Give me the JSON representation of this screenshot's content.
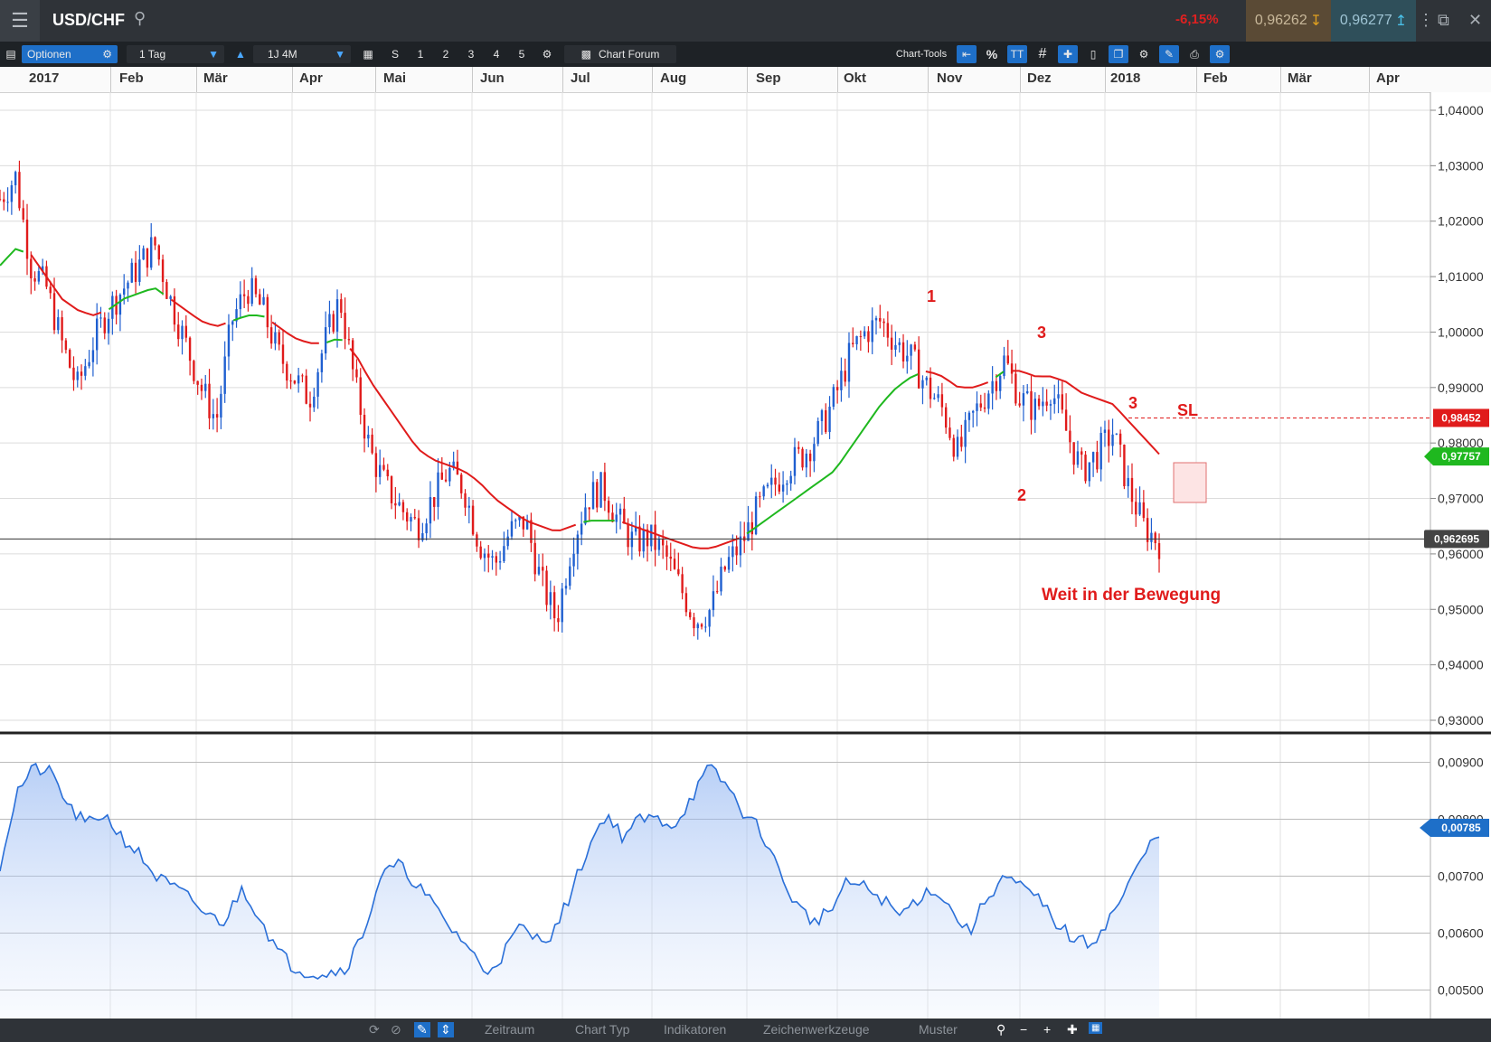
{
  "titlebar": {
    "symbol": "USD/CHF",
    "change": "-6,15%",
    "bid": "0,96262",
    "ask": "0,96277",
    "icons": [
      "menu-icon",
      "search-icon",
      "arrow-down-icon",
      "arrow-up-icon",
      "minimize-icon",
      "restore-icon",
      "close-icon"
    ]
  },
  "toolbar": {
    "options_label": "Optionen",
    "period_label": "1 Tag",
    "range_label": "1J 4M",
    "quick_periods": [
      "S",
      "1",
      "2",
      "3",
      "4",
      "5"
    ],
    "forum_label": "Chart Forum",
    "chart_tools_label": "Chart-Tools",
    "percent_label": "%",
    "text_label": "TT"
  },
  "time_axis": {
    "months": [
      "2017",
      "Feb",
      "Mär",
      "Apr",
      "Mai",
      "Jun",
      "Jul",
      "Aug",
      "Sep",
      "Okt",
      "Nov",
      "Dez",
      "2018",
      "Feb",
      "Mär",
      "Apr"
    ]
  },
  "price_axis": {
    "ticks": [
      "1,04000",
      "1,03000",
      "1,02000",
      "1,01000",
      "1,00000",
      "0,99000",
      "0,98000",
      "0,97000",
      "0,96000",
      "0,95000",
      "0,94000",
      "0,93000"
    ],
    "labels": {
      "sl": "0,98452",
      "ma": "0,97757",
      "current": "0,962695"
    }
  },
  "indicator_axis": {
    "ticks": [
      "0,00900",
      "0,00800",
      "0,00700",
      "0,00600",
      "0,00500"
    ],
    "current": "0,00785"
  },
  "annotations": {
    "wave_1": "1",
    "wave_2": "2",
    "wave_3a": "3",
    "wave_3b": "3",
    "sl": "SL",
    "note": "Weit in der Bewegung"
  },
  "bottombar": {
    "items": [
      "Zeitraum",
      "Chart Typ",
      "Indikatoren",
      "Zeichenwerkzeuge",
      "Muster"
    ]
  },
  "colors": {
    "up": "#1f5fd0",
    "down": "#e01b1b",
    "ma_red": "#e01b1b",
    "ma_green": "#1fb81f",
    "indicator": "#2a6fd8"
  },
  "chart_data": {
    "type": "candlestick",
    "price_range": [
      0.93,
      1.04
    ],
    "indicator_range": [
      0.005,
      0.009
    ],
    "current_price": 0.962695,
    "stop_loss": 0.98452,
    "ma_value": 0.97757,
    "wave_points": [
      {
        "label": "1",
        "date": "Nov 2017",
        "price": 1.003
      },
      {
        "label": "2",
        "date": "Dez 2017",
        "price": 0.976
      },
      {
        "label": "3",
        "date": "Dez 2017",
        "price": 0.996
      },
      {
        "label": "3",
        "date": "Jan 2018",
        "price": 0.985
      }
    ],
    "price_path": [
      1.024,
      1.028,
      1.012,
      1.008,
      0.998,
      0.99,
      0.998,
      1.004,
      1.008,
      1.012,
      1.016,
      1.006,
      0.998,
      0.99,
      0.984,
      1.002,
      1.008,
      1.004,
      0.996,
      0.992,
      0.988,
      0.998,
      1.006,
      0.99,
      0.978,
      0.972,
      0.968,
      0.965,
      0.97,
      0.975,
      0.972,
      0.962,
      0.958,
      0.964,
      0.966,
      0.955,
      0.948,
      0.962,
      0.97,
      0.972,
      0.966,
      0.962,
      0.963,
      0.96,
      0.954,
      0.948,
      0.95,
      0.958,
      0.962,
      0.968,
      0.972,
      0.976,
      0.978,
      0.982,
      0.988,
      0.996,
      1.0,
      1.002,
      0.998,
      0.995,
      0.99,
      0.986,
      0.978,
      0.985,
      0.99,
      0.995,
      0.988,
      0.986,
      0.99,
      0.982,
      0.975,
      0.978,
      0.982,
      0.972,
      0.965,
      0.962
    ],
    "ma_path": [
      1.012,
      1.015,
      1.014,
      1.01,
      1.006,
      1.004,
      1.003,
      1.004,
      1.006,
      1.007,
      1.008,
      1.006,
      1.004,
      1.002,
      1.001,
      1.002,
      1.003,
      1.003,
      1.001,
      0.999,
      0.998,
      0.998,
      0.999,
      0.996,
      0.991,
      0.987,
      0.983,
      0.979,
      0.977,
      0.976,
      0.975,
      0.973,
      0.97,
      0.968,
      0.966,
      0.965,
      0.964,
      0.965,
      0.966,
      0.966,
      0.966,
      0.965,
      0.964,
      0.963,
      0.962,
      0.961,
      0.961,
      0.962,
      0.963,
      0.965,
      0.967,
      0.969,
      0.971,
      0.973,
      0.975,
      0.979,
      0.983,
      0.987,
      0.99,
      0.992,
      0.993,
      0.992,
      0.99,
      0.99,
      0.991,
      0.993,
      0.993,
      0.992,
      0.992,
      0.991,
      0.989,
      0.988,
      0.987,
      0.984,
      0.981,
      0.978
    ],
    "indicator_path": [
      0.0072,
      0.0085,
      0.0089,
      0.0088,
      0.0082,
      0.0079,
      0.0081,
      0.0077,
      0.0074,
      0.007,
      0.0068,
      0.0066,
      0.0063,
      0.0062,
      0.0068,
      0.0063,
      0.0057,
      0.0054,
      0.0053,
      0.0053,
      0.0054,
      0.006,
      0.007,
      0.0072,
      0.0069,
      0.0065,
      0.0061,
      0.0058,
      0.0053,
      0.0056,
      0.0061,
      0.0059,
      0.006,
      0.0067,
      0.0075,
      0.0081,
      0.0077,
      0.008,
      0.008,
      0.0079,
      0.0084,
      0.0089,
      0.0086,
      0.0081,
      0.0078,
      0.0071,
      0.0065,
      0.0062,
      0.0064,
      0.0069,
      0.0068,
      0.0066,
      0.0063,
      0.0066,
      0.0068,
      0.0064,
      0.006,
      0.0066,
      0.007,
      0.0068,
      0.0066,
      0.0062,
      0.0059,
      0.0058,
      0.0062,
      0.0067,
      0.0073,
      0.0078
    ]
  }
}
